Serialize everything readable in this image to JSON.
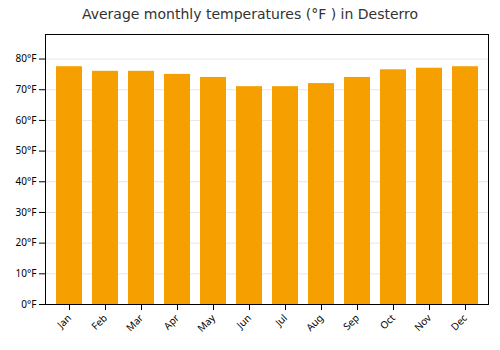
{
  "chart_data": {
    "type": "bar",
    "title": "Average monthly temperatures (°F ) in Desterro",
    "categories": [
      "Jan",
      "Feb",
      "Mar",
      "Apr",
      "May",
      "Jun",
      "Jul",
      "Aug",
      "Sep",
      "Oct",
      "Nov",
      "Dec"
    ],
    "values": [
      77.5,
      76.0,
      76.0,
      75.0,
      74.0,
      71.0,
      71.0,
      72.0,
      74.0,
      76.5,
      77.0,
      77.5
    ],
    "color": "#F5A000",
    "ylim": [
      0,
      88
    ],
    "yticks": [
      {
        "value": 0,
        "label": "0°F"
      },
      {
        "value": 10,
        "label": "10°F"
      },
      {
        "value": 20,
        "label": "20°F"
      },
      {
        "value": 30,
        "label": "30°F"
      },
      {
        "value": 40,
        "label": "40°F"
      },
      {
        "value": 50,
        "label": "50°F"
      },
      {
        "value": 60,
        "label": "60°F"
      },
      {
        "value": 70,
        "label": "70°F"
      },
      {
        "value": 80,
        "label": "80°F"
      }
    ],
    "grid": true
  }
}
